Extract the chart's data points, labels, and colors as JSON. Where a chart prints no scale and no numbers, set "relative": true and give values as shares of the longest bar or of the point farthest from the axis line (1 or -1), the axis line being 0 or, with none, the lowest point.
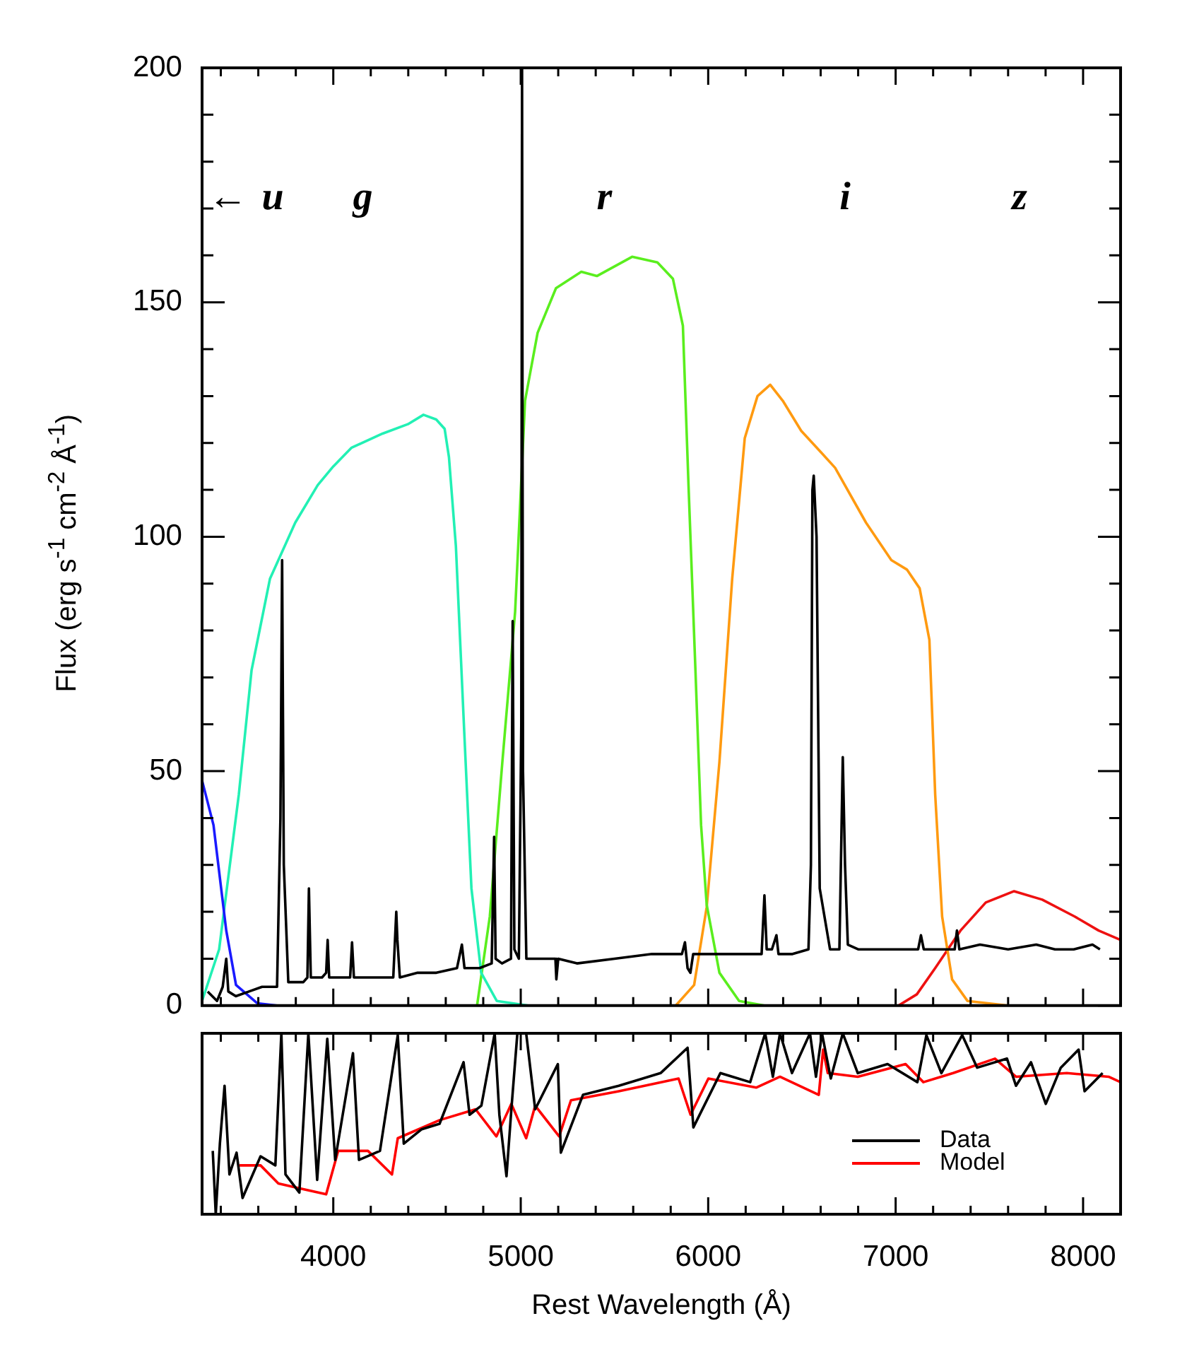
{
  "chart_data": [
    {
      "type": "line",
      "ylabel": "Flux (erg s$^{-1}$ cm$^{-2}$ Å$^{-1}$)",
      "xlim": [
        3300,
        8200
      ],
      "ylim": [
        0,
        200
      ],
      "tick_labels": "y",
      "xticks": [
        {
          "value": 3400,
          "label": null
        },
        {
          "value": 3600,
          "label": null
        },
        {
          "value": 3800,
          "label": null
        },
        4000,
        {
          "value": 4200,
          "label": null
        },
        {
          "value": 4400,
          "label": null
        },
        {
          "value": 4600,
          "label": null
        },
        {
          "value": 4800,
          "label": null
        },
        5000,
        {
          "value": 5200,
          "label": null
        },
        {
          "value": 5400,
          "label": null
        },
        {
          "value": 5600,
          "label": null
        },
        {
          "value": 5800,
          "label": null
        },
        6000,
        {
          "value": 6200,
          "label": null
        },
        {
          "value": 6400,
          "label": null
        },
        {
          "value": 6600,
          "label": null
        },
        {
          "value": 6800,
          "label": null
        },
        7000,
        {
          "value": 7200,
          "label": null
        },
        {
          "value": 7400,
          "label": null
        },
        {
          "value": 7600,
          "label": null
        },
        {
          "value": 7800,
          "label": null
        },
        8000
      ],
      "yticks": [
        0,
        {
          "value": 10,
          "label": null
        },
        {
          "value": 20,
          "label": null
        },
        {
          "value": 30,
          "label": null
        },
        {
          "value": 40,
          "label": null
        },
        50,
        {
          "value": 60,
          "label": null
        },
        {
          "value": 70,
          "label": null
        },
        {
          "value": 80,
          "label": null
        },
        {
          "value": 90,
          "label": null
        },
        100,
        {
          "value": 110,
          "label": null
        },
        {
          "value": 120,
          "label": null
        },
        {
          "value": 130,
          "label": null
        },
        {
          "value": 140,
          "label": null
        },
        150,
        {
          "value": 160,
          "label": null
        },
        {
          "value": 170,
          "label": null
        },
        {
          "value": 180,
          "label": null
        },
        {
          "value": 190,
          "label": null
        },
        200
      ],
      "annotations": [
        "←",
        "u",
        "g",
        "r",
        "i",
        "z"
      ],
      "series": [
        {
          "color": "#000000",
          "x": [
            3330,
            3380,
            3410,
            3429,
            3440,
            3480,
            3550,
            3620,
            3700,
            3718,
            3727,
            3736,
            3760,
            3840,
            3862,
            3870,
            3880,
            3940,
            3962,
            3970,
            3978,
            4040,
            4090,
            4100,
            4110,
            4200,
            4320,
            4336,
            4342,
            4355,
            4450,
            4550,
            4660,
            4686,
            4700,
            4780,
            4845,
            4858,
            4866,
            4900,
            4948,
            4957,
            4966,
            4990,
            5003,
            5007,
            5012,
            5030,
            5100,
            5185,
            5190,
            5200,
            5300,
            5500,
            5700,
            5860,
            5876,
            5890,
            5905,
            5920,
            6050,
            6200,
            6285,
            6300,
            6312,
            6340,
            6364,
            6375,
            6450,
            6535,
            6548,
            6556,
            6563,
            6578,
            6595,
            6650,
            6700,
            6718,
            6730,
            6745,
            6800,
            6950,
            7120,
            7135,
            7150,
            7250,
            7315,
            7327,
            7340,
            7450,
            7600,
            7750,
            7850,
            7950,
            8050,
            8090
          ],
          "values": [
            3,
            1,
            4,
            10,
            3,
            2,
            3,
            4,
            4,
            40,
            95,
            30,
            5,
            5,
            6,
            25,
            6,
            6,
            7,
            14,
            6,
            6,
            6,
            13.5,
            6,
            6,
            6,
            20,
            14,
            6,
            7,
            7,
            8,
            13,
            8,
            8,
            9,
            36,
            10,
            9,
            10,
            82,
            12,
            10,
            60,
            200,
            50,
            10,
            10,
            10,
            5.6,
            10,
            9,
            10,
            11,
            11,
            13.5,
            8,
            7,
            11,
            11,
            11,
            11,
            23.5,
            12,
            12,
            15,
            11,
            11,
            12,
            30,
            110,
            113,
            100,
            25,
            12,
            12,
            53,
            30,
            13,
            12,
            12,
            12,
            15,
            12,
            12,
            12,
            16,
            12,
            13,
            12,
            13,
            12,
            12,
            13,
            12
          ]
        },
        {
          "color": "#1a1aff",
          "x": [
            3300,
            3361,
            3429,
            3481,
            3594,
            3700
          ],
          "values": [
            48,
            38.5,
            16,
            4.4,
            0.5,
            0
          ]
        },
        {
          "color": "#22f0b4",
          "x": [
            3300,
            3391,
            3496,
            3564,
            3662,
            3797,
            3917,
            4000,
            4098,
            4263,
            4398,
            4481,
            4549,
            4594,
            4617,
            4654,
            4699,
            4737,
            4789,
            4872,
            5040
          ],
          "values": [
            1,
            12,
            45,
            71.5,
            91,
            103,
            111,
            115,
            119,
            122,
            124,
            126,
            125,
            123,
            117,
            98,
            58,
            25,
            7,
            1,
            0
          ]
        },
        {
          "color": "#5aee1e",
          "x": [
            4767,
            4835,
            4902,
            4970,
            5023,
            5090,
            5188,
            5323,
            5406,
            5594,
            5729,
            5812,
            5865,
            5895,
            5932,
            5962,
            5992,
            6060,
            6165,
            6300
          ],
          "values": [
            0,
            19,
            52,
            84,
            129,
            143.5,
            153,
            156.5,
            155.6,
            159.7,
            158.5,
            155,
            145,
            111,
            71.5,
            38.5,
            21.5,
            7,
            1,
            0
          ]
        },
        {
          "color": "#ff9a10",
          "x": [
            5827,
            5925,
            5992,
            6060,
            6128,
            6195,
            6263,
            6331,
            6398,
            6496,
            6602,
            6677,
            6842,
            6977,
            7060,
            7128,
            7180,
            7211,
            7248,
            7301,
            7383,
            7600
          ],
          "values": [
            0,
            4.4,
            21,
            52,
            91,
            121,
            130,
            132.4,
            129,
            122.6,
            118,
            114.7,
            103,
            95,
            93,
            89,
            78,
            45,
            19,
            5.6,
            1,
            0
          ]
        },
        {
          "color": "#ee1111",
          "x": [
            7015,
            7113,
            7211,
            7346,
            7481,
            7632,
            7782,
            7955,
            8083,
            8200
          ],
          "values": [
            0,
            2.4,
            8,
            16,
            22,
            24.4,
            22.6,
            19,
            16,
            14
          ]
        }
      ]
    },
    {
      "type": "line",
      "relative": true,
      "xlabel": "Rest Wavelength (Å)",
      "xlim": [
        3300,
        8200
      ],
      "tick_labels": "x",
      "legend": "bottom right",
      "xticks": [
        {
          "value": 3400,
          "label": null
        },
        {
          "value": 3600,
          "label": null
        },
        {
          "value": 3800,
          "label": null
        },
        4000,
        {
          "value": 4200,
          "label": null
        },
        {
          "value": 4400,
          "label": null
        },
        {
          "value": 4600,
          "label": null
        },
        {
          "value": 4800,
          "label": null
        },
        5000,
        {
          "value": 5200,
          "label": null
        },
        {
          "value": 5400,
          "label": null
        },
        {
          "value": 5600,
          "label": null
        },
        {
          "value": 5800,
          "label": null
        },
        6000,
        {
          "value": 6200,
          "label": null
        },
        {
          "value": 6400,
          "label": null
        },
        {
          "value": 6600,
          "label": null
        },
        {
          "value": 6800,
          "label": null
        },
        7000,
        {
          "value": 7200,
          "label": null
        },
        {
          "value": 7400,
          "label": null
        },
        {
          "value": 7600,
          "label": null
        },
        {
          "value": 7800,
          "label": null
        },
        8000
      ],
      "series": [
        {
          "name": "Data",
          "color": "#000000",
          "x": [
            3357,
            3373,
            3395,
            3420,
            3446,
            3484,
            3516,
            3612,
            3691,
            3723,
            3745,
            3819,
            3867,
            3914,
            3968,
            4010,
            4105,
            4137,
            4249,
            4344,
            4376,
            4472,
            4567,
            4695,
            4727,
            4790,
            4861,
            4886,
            4924,
            4950,
            4982,
            5029,
            5077,
            5198,
            5214,
            5332,
            5523,
            5746,
            5890,
            5921,
            6065,
            6224,
            6304,
            6345,
            6383,
            6447,
            6543,
            6575,
            6607,
            6654,
            6718,
            6798,
            6957,
            7116,
            7164,
            7244,
            7355,
            7435,
            7594,
            7642,
            7722,
            7801,
            7881,
            7976,
            8008,
            8104
          ],
          "values": [
            0.35,
            0,
            0.39,
            0.71,
            0.22,
            0.34,
            0.09,
            0.32,
            0.27,
            1,
            0.22,
            0.12,
            1,
            0.19,
            0.97,
            0.3,
            0.89,
            0.3,
            0.35,
            0.99,
            0.39,
            0.47,
            0.5,
            0.84,
            0.55,
            0.6,
            1,
            0.55,
            0.21,
            0.58,
            1,
            1,
            0.58,
            0.83,
            0.34,
            0.66,
            0.71,
            0.78,
            0.92,
            0.48,
            0.78,
            0.73,
            1,
            0.76,
            1,
            0.78,
            1,
            0.76,
            1,
            0.75,
            1,
            0.78,
            0.83,
            0.73,
            0.99,
            0.78,
            0.99,
            0.81,
            0.86,
            0.71,
            0.84,
            0.61,
            0.81,
            0.91,
            0.68,
            0.78
          ]
        },
        {
          "name": "Model",
          "color": "#ff0000",
          "x": [
            3500,
            3612,
            3707,
            3835,
            3962,
            4026,
            4185,
            4313,
            4344,
            4567,
            4759,
            4870,
            4950,
            5029,
            5077,
            5205,
            5268,
            5523,
            5842,
            5906,
            6001,
            6256,
            6383,
            6590,
            6613,
            6638,
            6798,
            7053,
            7148,
            7307,
            7530,
            7642,
            7913,
            8136,
            8200
          ],
          "values": [
            0.27,
            0.27,
            0.17,
            0.14,
            0.11,
            0.35,
            0.35,
            0.22,
            0.42,
            0.52,
            0.58,
            0.43,
            0.61,
            0.42,
            0.6,
            0.43,
            0.63,
            0.68,
            0.75,
            0.55,
            0.75,
            0.7,
            0.76,
            0.66,
            0.91,
            0.78,
            0.76,
            0.83,
            0.73,
            0.78,
            0.86,
            0.76,
            0.78,
            0.76,
            0.73
          ]
        }
      ]
    }
  ]
}
